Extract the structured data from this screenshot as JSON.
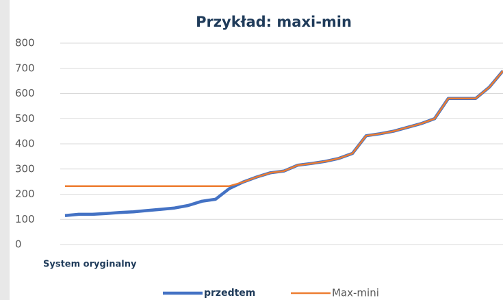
{
  "chart_data": {
    "type": "line",
    "title": "Przykład: maxi-min",
    "x_label": "System oryginalny",
    "categories": [
      null,
      null,
      null,
      null,
      null,
      null,
      null,
      null,
      null,
      null,
      null,
      null,
      null,
      null,
      null,
      null,
      null,
      null,
      null,
      null,
      null,
      null,
      null,
      null,
      null,
      null,
      null,
      null,
      null,
      null,
      null,
      null,
      null
    ],
    "series": [
      {
        "name": "przedtem",
        "color": "#4472c4",
        "values": [
          115,
          120,
          120,
          123,
          127,
          130,
          135,
          140,
          145,
          155,
          172,
          180,
          222,
          248,
          268,
          285,
          292,
          315,
          322,
          330,
          342,
          362,
          432,
          440,
          450,
          465,
          480,
          500,
          580,
          580,
          580,
          625,
          690
        ]
      },
      {
        "name": "Max-mini",
        "color": "#ed7d31",
        "values": [
          232,
          232,
          232,
          232,
          232,
          232,
          232,
          232,
          232,
          232,
          232,
          232,
          232,
          248,
          268,
          285,
          292,
          315,
          322,
          330,
          342,
          362,
          432,
          440,
          450,
          465,
          480,
          500,
          580,
          580,
          580,
          625,
          690
        ]
      }
    ],
    "ylim": [
      0,
      800
    ],
    "yticks": [
      0,
      100,
      200,
      300,
      400,
      500,
      600,
      700,
      800
    ],
    "grid": true
  }
}
